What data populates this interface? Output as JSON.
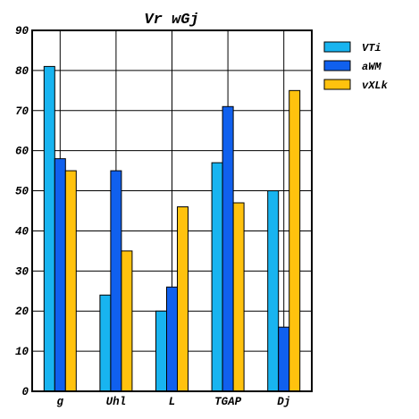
{
  "chart_data": {
    "type": "bar",
    "title": "Vr wGj",
    "xlabel": "",
    "ylabel": "",
    "categories": [
      "g",
      "Uhl",
      "L",
      "TGAP",
      "Dj"
    ],
    "series": [
      {
        "name": "VTi",
        "color": "#18b4f0",
        "values": [
          81,
          24,
          20,
          57,
          50
        ]
      },
      {
        "name": "aWM",
        "color": "#1060ee",
        "values": [
          58,
          55,
          26,
          71,
          16
        ]
      },
      {
        "name": "vXLk",
        "color": "#ffc20e",
        "values": [
          55,
          35,
          46,
          47,
          75
        ]
      }
    ],
    "ylim": [
      0,
      90
    ],
    "yticks": [
      0,
      10,
      20,
      30,
      40,
      50,
      60,
      70,
      80,
      90
    ],
    "grid": true,
    "legend": "top-right"
  }
}
